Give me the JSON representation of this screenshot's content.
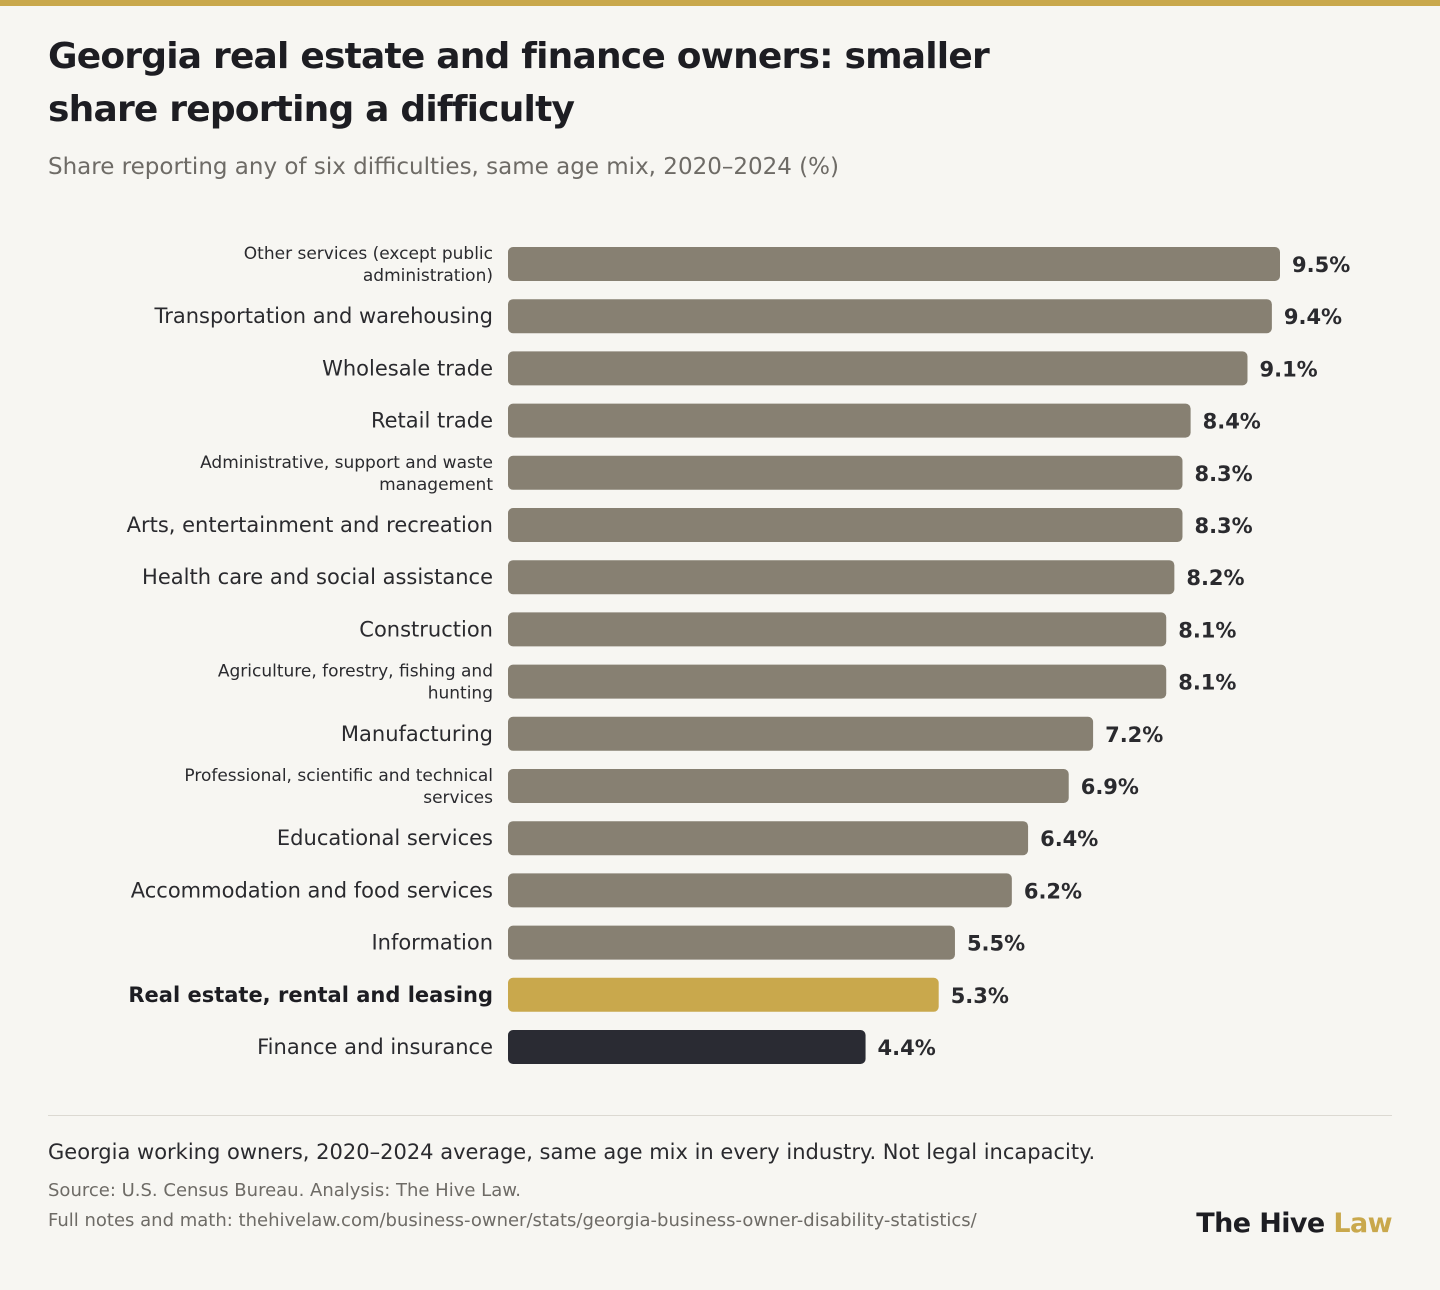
{
  "header": {
    "title": "Georgia real estate and finance owners: smaller share reporting a difficulty",
    "subtitle": "Share reporting any of six difficulties, same age mix, 2020–2024 (%)"
  },
  "colors": {
    "default_bar": "#878072",
    "highlight_bar": "#c9a84c",
    "dark_bar": "#2a2b33",
    "accent": "#c9a84c"
  },
  "chart_data": {
    "type": "bar",
    "orientation": "horizontal",
    "value_suffix": "%",
    "xlim": [
      0,
      9.5
    ],
    "grid": false,
    "categories": [
      [
        "Other services (except public",
        "administration)"
      ],
      [
        "Transportation and warehousing"
      ],
      [
        "Wholesale trade"
      ],
      [
        "Retail trade"
      ],
      [
        "Administrative, support and waste",
        "management"
      ],
      [
        "Arts, entertainment and recreation"
      ],
      [
        "Health care and social assistance"
      ],
      [
        "Construction"
      ],
      [
        "Agriculture, forestry, fishing and",
        "hunting"
      ],
      [
        "Manufacturing"
      ],
      [
        "Professional, scientific and technical",
        "services"
      ],
      [
        "Educational services"
      ],
      [
        "Accommodation and food services"
      ],
      [
        "Information"
      ],
      [
        "Real estate, rental and leasing"
      ],
      [
        "Finance and insurance"
      ]
    ],
    "values": [
      9.5,
      9.4,
      9.1,
      8.4,
      8.3,
      8.3,
      8.2,
      8.1,
      8.1,
      7.2,
      6.9,
      6.4,
      6.2,
      5.5,
      5.3,
      4.4
    ],
    "value_labels": [
      "9.5%",
      "9.4%",
      "9.1%",
      "8.4%",
      "8.3%",
      "8.3%",
      "8.2%",
      "8.1%",
      "8.1%",
      "7.2%",
      "6.9%",
      "6.4%",
      "6.2%",
      "5.5%",
      "5.3%",
      "4.4%"
    ],
    "bar_styles": [
      "default",
      "default",
      "default",
      "default",
      "default",
      "default",
      "default",
      "default",
      "default",
      "default",
      "default",
      "default",
      "default",
      "default",
      "highlight",
      "dark"
    ]
  },
  "footer": {
    "note": "Georgia working owners, 2020–2024 average, same age mix in every industry. Not legal incapacity.",
    "source": "Source: U.S. Census Bureau. Analysis: The Hive Law.",
    "link": "Full notes and math: thehivelaw.com/business-owner/stats/georgia-business-owner-disability-statistics/",
    "logo_primary": "The Hive",
    "logo_accent": "Law"
  }
}
